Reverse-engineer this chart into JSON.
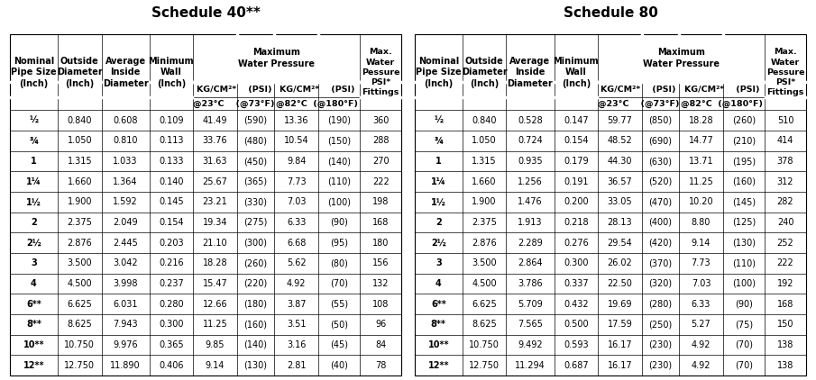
{
  "title_left": "Schedule 40**",
  "title_right": "Schedule 80",
  "title_fontsize": 11,
  "fig_width": 9.05,
  "fig_height": 4.22,
  "background_color": "#ffffff",
  "schedule40_data": [
    [
      "½",
      "0.840",
      "0.608",
      "0.109",
      "41.49",
      "(590)",
      "13.36",
      "(190)",
      "360"
    ],
    [
      "¾",
      "1.050",
      "0.810",
      "0.113",
      "33.76",
      "(480)",
      "10.54",
      "(150)",
      "288"
    ],
    [
      "1",
      "1.315",
      "1.033",
      "0.133",
      "31.63",
      "(450)",
      "9.84",
      "(140)",
      "270"
    ],
    [
      "1¼",
      "1.660",
      "1.364",
      "0.140",
      "25.67",
      "(365)",
      "7.73",
      "(110)",
      "222"
    ],
    [
      "1½",
      "1.900",
      "1.592",
      "0.145",
      "23.21",
      "(330)",
      "7.03",
      "(100)",
      "198"
    ],
    [
      "2",
      "2.375",
      "2.049",
      "0.154",
      "19.34",
      "(275)",
      "6.33",
      "(90)",
      "168"
    ],
    [
      "2½",
      "2.876",
      "2.445",
      "0.203",
      "21.10",
      "(300)",
      "6.68",
      "(95)",
      "180"
    ],
    [
      "3",
      "3.500",
      "3.042",
      "0.216",
      "18.28",
      "(260)",
      "5.62",
      "(80)",
      "156"
    ],
    [
      "4",
      "4.500",
      "3.998",
      "0.237",
      "15.47",
      "(220)",
      "4.92",
      "(70)",
      "132"
    ],
    [
      "6**",
      "6.625",
      "6.031",
      "0.280",
      "12.66",
      "(180)",
      "3.87",
      "(55)",
      "108"
    ],
    [
      "8**",
      "8.625",
      "7.943",
      "0.300",
      "11.25",
      "(160)",
      "3.51",
      "(50)",
      "96"
    ],
    [
      "10**",
      "10.750",
      "9.976",
      "0.365",
      "9.85",
      "(140)",
      "3.16",
      "(45)",
      "84"
    ],
    [
      "12**",
      "12.750",
      "11.890",
      "0.406",
      "9.14",
      "(130)",
      "2.81",
      "(40)",
      "78"
    ]
  ],
  "schedule80_data": [
    [
      "½",
      "0.840",
      "0.528",
      "0.147",
      "59.77",
      "(850)",
      "18.28",
      "(260)",
      "510"
    ],
    [
      "¾",
      "1.050",
      "0.724",
      "0.154",
      "48.52",
      "(690)",
      "14.77",
      "(210)",
      "414"
    ],
    [
      "1",
      "1.315",
      "0.935",
      "0.179",
      "44.30",
      "(630)",
      "13.71",
      "(195)",
      "378"
    ],
    [
      "1¼",
      "1.660",
      "1.256",
      "0.191",
      "36.57",
      "(520)",
      "11.25",
      "(160)",
      "312"
    ],
    [
      "1½",
      "1.900",
      "1.476",
      "0.200",
      "33.05",
      "(470)",
      "10.20",
      "(145)",
      "282"
    ],
    [
      "2",
      "2.375",
      "1.913",
      "0.218",
      "28.13",
      "(400)",
      "8.80",
      "(125)",
      "240"
    ],
    [
      "2½",
      "2.876",
      "2.289",
      "0.276",
      "29.54",
      "(420)",
      "9.14",
      "(130)",
      "252"
    ],
    [
      "3",
      "3.500",
      "2.864",
      "0.300",
      "26.02",
      "(370)",
      "7.73",
      "(110)",
      "222"
    ],
    [
      "4",
      "4.500",
      "3.786",
      "0.337",
      "22.50",
      "(320)",
      "7.03",
      "(100)",
      "192"
    ],
    [
      "6**",
      "6.625",
      "5.709",
      "0.432",
      "19.69",
      "(280)",
      "6.33",
      "(90)",
      "168"
    ],
    [
      "8**",
      "8.625",
      "7.565",
      "0.500",
      "17.59",
      "(250)",
      "5.27",
      "(75)",
      "150"
    ],
    [
      "10**",
      "10.750",
      "9.492",
      "0.593",
      "16.17",
      "(230)",
      "4.92",
      "(70)",
      "138"
    ],
    [
      "12**",
      "12.750",
      "11.294",
      "0.687",
      "16.17",
      "(230)",
      "4.92",
      "(70)",
      "138"
    ]
  ],
  "col_props_40": [
    0.115,
    0.105,
    0.115,
    0.105,
    0.105,
    0.09,
    0.105,
    0.1,
    0.1
  ],
  "col_props_80": [
    0.115,
    0.105,
    0.115,
    0.105,
    0.105,
    0.09,
    0.105,
    0.1,
    0.1
  ],
  "font_size_data": 7.0,
  "font_size_header": 7.0,
  "font_size_subheader": 6.8
}
